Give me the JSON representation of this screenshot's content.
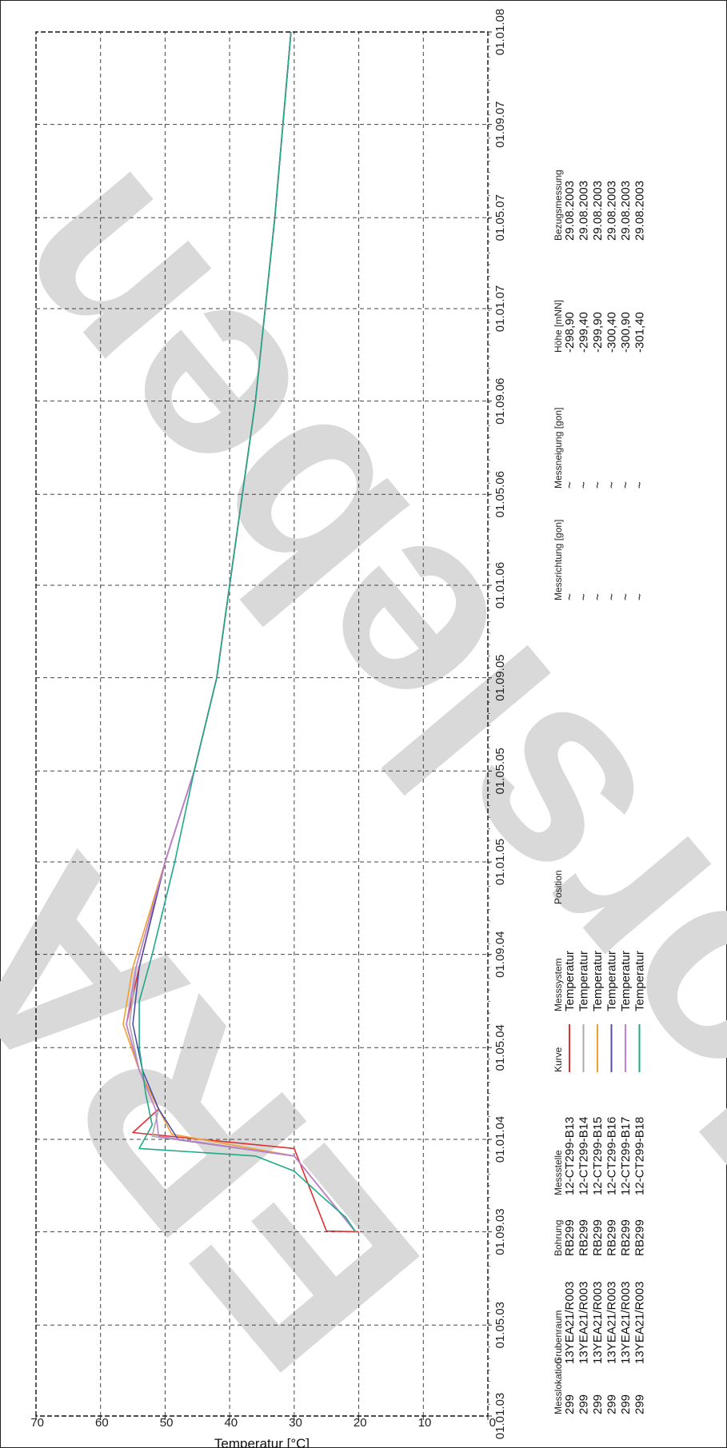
{
  "chart_data": {
    "type": "line",
    "orientation": "rotated-90-counterclockwise",
    "ylabel": "Temperatur [°C]",
    "xlabel": "",
    "ylim": [
      0,
      70
    ],
    "y_ticks": [
      0,
      10,
      20,
      30,
      40,
      50,
      60,
      70
    ],
    "x_ticks": [
      "01.01.03",
      "01.05.03",
      "01.09.03",
      "01.01.04",
      "01.05.04",
      "01.09.04",
      "01.01.05",
      "01.05.05",
      "01.09.05",
      "01.01.06",
      "01.05.06",
      "01.09.06",
      "01.01.07",
      "01.05.07",
      "01.09.07",
      "01.01.08"
    ],
    "xlim": [
      "2003-01-01",
      "2008-01-01"
    ],
    "grid": true,
    "series": [
      {
        "name": "12-CT299-B13",
        "color": "#e03030",
        "points": [
          [
            "2003-09-01",
            20
          ],
          [
            "2003-09-02",
            25
          ],
          [
            "2003-12-20",
            30
          ],
          [
            "2004-01-10",
            55
          ],
          [
            "2004-02-10",
            51
          ],
          [
            "2004-04-01",
            54
          ],
          [
            "2004-06-01",
            56
          ],
          [
            "2004-08-15",
            54
          ],
          [
            "2005-01-01",
            50
          ],
          [
            "2005-05-01",
            45.5
          ],
          [
            "2005-09-01",
            42
          ],
          [
            "2006-01-01",
            40
          ],
          [
            "2006-09-01",
            36
          ],
          [
            "2007-05-01",
            33
          ],
          [
            "2008-01-01",
            30.5
          ]
        ]
      },
      {
        "name": "12-CT299-B14",
        "color": "#aaaaaa",
        "points": [
          [
            "2003-09-01",
            20.5
          ],
          [
            "2003-12-10",
            30
          ],
          [
            "2004-01-05",
            52
          ],
          [
            "2004-02-10",
            51
          ],
          [
            "2004-04-01",
            54
          ],
          [
            "2004-06-01",
            55.5
          ],
          [
            "2004-08-15",
            54.5
          ],
          [
            "2005-01-01",
            50
          ],
          [
            "2005-05-01",
            45.5
          ],
          [
            "2005-09-01",
            42
          ],
          [
            "2006-01-01",
            40
          ],
          [
            "2006-09-01",
            36
          ],
          [
            "2007-05-01",
            33
          ],
          [
            "2008-01-01",
            30.5
          ]
        ]
      },
      {
        "name": "12-CT299-B15",
        "color": "#f0a030",
        "points": [
          [
            "2003-09-01",
            20.5
          ],
          [
            "2003-12-10",
            30
          ],
          [
            "2004-01-08",
            49
          ],
          [
            "2004-02-10",
            51
          ],
          [
            "2004-04-01",
            54
          ],
          [
            "2004-06-01",
            56.5
          ],
          [
            "2004-08-15",
            55
          ],
          [
            "2005-01-01",
            50
          ],
          [
            "2005-05-01",
            45.5
          ],
          [
            "2005-09-01",
            42
          ],
          [
            "2006-01-01",
            40
          ],
          [
            "2006-09-01",
            36
          ],
          [
            "2007-05-01",
            33
          ],
          [
            "2008-01-01",
            30.5
          ]
        ]
      },
      {
        "name": "12-CT299-B16",
        "color": "#5050a8",
        "points": [
          [
            "2003-09-01",
            20.5
          ],
          [
            "2003-12-10",
            30
          ],
          [
            "2004-01-01",
            48
          ],
          [
            "2004-02-10",
            51
          ],
          [
            "2004-04-01",
            53.5
          ],
          [
            "2004-06-01",
            55
          ],
          [
            "2004-08-15",
            54
          ],
          [
            "2005-01-01",
            50
          ],
          [
            "2005-05-01",
            45.5
          ],
          [
            "2005-09-01",
            42
          ],
          [
            "2006-01-01",
            40
          ],
          [
            "2006-09-01",
            36
          ],
          [
            "2007-05-01",
            33
          ],
          [
            "2008-01-01",
            30.5
          ]
        ]
      },
      {
        "name": "12-CT299-B17",
        "color": "#c080d0",
        "points": [
          [
            "2003-09-01",
            20.5
          ],
          [
            "2003-12-10",
            30
          ],
          [
            "2004-01-05",
            51
          ],
          [
            "2004-02-10",
            51.5
          ],
          [
            "2004-04-01",
            54
          ],
          [
            "2004-06-01",
            56
          ],
          [
            "2004-08-15",
            54.5
          ],
          [
            "2005-01-01",
            50
          ],
          [
            "2005-05-01",
            45.5
          ],
          [
            "2005-09-01",
            42
          ],
          [
            "2006-01-01",
            40
          ],
          [
            "2006-09-01",
            36
          ],
          [
            "2007-05-01",
            33
          ],
          [
            "2008-01-01",
            30.5
          ]
        ]
      },
      {
        "name": "12-CT299-B18",
        "color": "#20a888",
        "points": [
          [
            "2003-09-01",
            20.5
          ],
          [
            "2003-09-20",
            22
          ],
          [
            "2003-10-20",
            26
          ],
          [
            "2003-11-20",
            30
          ],
          [
            "2003-12-10",
            36
          ],
          [
            "2003-12-20",
            54
          ],
          [
            "2004-01-20",
            52
          ],
          [
            "2004-03-01",
            53
          ],
          [
            "2004-05-01",
            54
          ],
          [
            "2004-07-01",
            54
          ],
          [
            "2004-09-01",
            52
          ],
          [
            "2005-01-01",
            48.5
          ],
          [
            "2005-05-01",
            45.5
          ],
          [
            "2005-09-01",
            42
          ],
          [
            "2006-01-01",
            40
          ],
          [
            "2006-09-01",
            36
          ],
          [
            "2007-05-01",
            33
          ],
          [
            "2008-01-01",
            30.5
          ]
        ]
      }
    ]
  },
  "legend": {
    "headers": {
      "messlokation": "Messlokation",
      "grubenraum": "Grubenraum",
      "bohrung": "Bohrung",
      "messstelle": "Messstelle",
      "kurve": "Kurve",
      "messsystem": "Messsystem",
      "position": "Position",
      "messrichtung": "Messrichtung [gon]",
      "messneigung": "Messneigung [gon]",
      "hoehe": "Höhe [mNN]",
      "bezugsmessung": "Bezugsmessung"
    },
    "rows": [
      {
        "messlokation": "299",
        "grubenraum": "13YEA21/R003",
        "bohrung": "RB299",
        "messstelle": "12-CT299-B13",
        "color": "#e03030",
        "messsystem": "Temperatur",
        "messrichtung": "~",
        "messneigung": "~",
        "hoehe": "-298,90",
        "bezugsmessung": "29.08.2003"
      },
      {
        "messlokation": "299",
        "grubenraum": "13YEA21/R003",
        "bohrung": "RB299",
        "messstelle": "12-CT299-B14",
        "color": "#aaaaaa",
        "messsystem": "Temperatur",
        "messrichtung": "~",
        "messneigung": "~",
        "hoehe": "-299,40",
        "bezugsmessung": "29.08.2003"
      },
      {
        "messlokation": "299",
        "grubenraum": "13YEA21/R003",
        "bohrung": "RB299",
        "messstelle": "12-CT299-B15",
        "color": "#f0a030",
        "messsystem": "Temperatur",
        "messrichtung": "~",
        "messneigung": "~",
        "hoehe": "-299,90",
        "bezugsmessung": "29.08.2003"
      },
      {
        "messlokation": "299",
        "grubenraum": "13YEA21/R003",
        "bohrung": "RB299",
        "messstelle": "12-CT299-B16",
        "color": "#5050a8",
        "messsystem": "Temperatur",
        "messrichtung": "~",
        "messneigung": "~",
        "hoehe": "-300,40",
        "bezugsmessung": "29.08.2003"
      },
      {
        "messlokation": "299",
        "grubenraum": "13YEA21/R003",
        "bohrung": "RB299",
        "messstelle": "12-CT299-B17",
        "color": "#c080d0",
        "messsystem": "Temperatur",
        "messrichtung": "~",
        "messneigung": "~",
        "hoehe": "-300,90",
        "bezugsmessung": "29.08.2003"
      },
      {
        "messlokation": "299",
        "grubenraum": "13YEA21/R003",
        "bohrung": "RB299",
        "messstelle": "12-CT299-B18",
        "color": "#20a888",
        "messsystem": "Temperatur",
        "messrichtung": "~",
        "messneigung": "~",
        "hoehe": "-301,40",
        "bezugsmessung": "29.08.2003"
      }
    ]
  },
  "watermark": {
    "line1": "ERA",
    "line2": "Morsleben",
    "color": "#d9d9d9"
  }
}
